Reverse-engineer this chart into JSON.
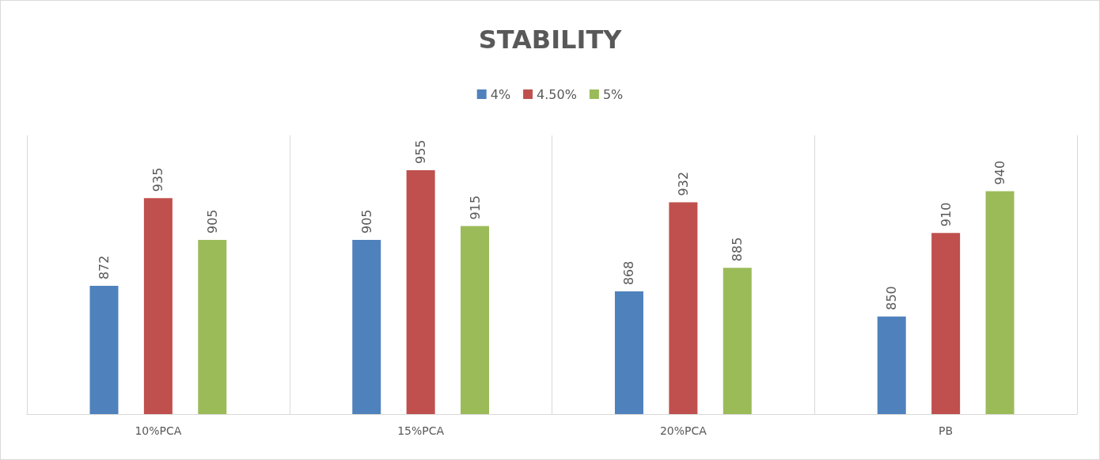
{
  "chart_data": {
    "type": "bar",
    "title": "STABILITY",
    "categories": [
      "10%PCA",
      "15%PCA",
      "20%PCA",
      "PB"
    ],
    "series": [
      {
        "name": "4%",
        "color": "#4f81bd",
        "values": [
          872,
          905,
          868,
          850
        ]
      },
      {
        "name": "4.50%",
        "color": "#c0504d",
        "values": [
          935,
          955,
          932,
          910
        ]
      },
      {
        "name": "5%",
        "color": "#9bbb59",
        "values": [
          905,
          915,
          885,
          940
        ]
      }
    ],
    "ylim": [
      780,
      980
    ],
    "data_labels": true,
    "grid": "x",
    "legend": "top",
    "tick_labels": "x"
  }
}
